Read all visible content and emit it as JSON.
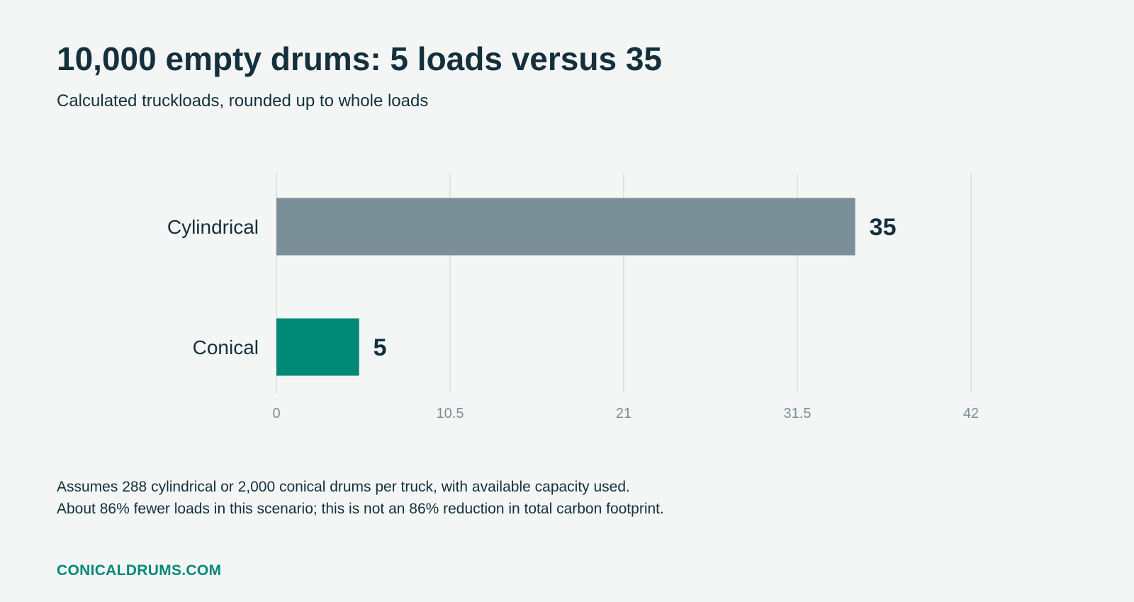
{
  "header": {
    "title": "10,000 empty drums: 5 loads versus 35",
    "subtitle": "Calculated truckloads, rounded up to whole loads"
  },
  "chart_data": {
    "type": "bar",
    "orientation": "horizontal",
    "title": "10,000 empty drums: 5 loads versus 35",
    "subtitle": "Calculated truckloads, rounded up to whole loads",
    "categories": [
      "Cylindrical",
      "Conical"
    ],
    "values": [
      35,
      5
    ],
    "value_labels": [
      "35",
      "5"
    ],
    "colors": [
      "#7b8f99",
      "#008a76"
    ],
    "xlim": [
      0,
      42
    ],
    "ticks": [
      0,
      10.5,
      21,
      31.5,
      42
    ],
    "tick_labels": [
      "0",
      "10.5",
      "21",
      "31.5",
      "42"
    ],
    "grid": true,
    "xlabel": "",
    "ylabel": ""
  },
  "notes": [
    "Assumes 288 cylindrical or 2,000 conical drums per truck, with available capacity used.",
    "About 86% fewer loads in this scenario; this is not an 86% reduction in total carbon footprint."
  ],
  "footer": {
    "brand": "CONICALDRUMS.COM"
  },
  "colors": {
    "background": "#f4f6f5",
    "text": "#14303d",
    "grid": "#dfe3e2",
    "tick_text": "#7a8e98",
    "accent": "#008a76"
  }
}
